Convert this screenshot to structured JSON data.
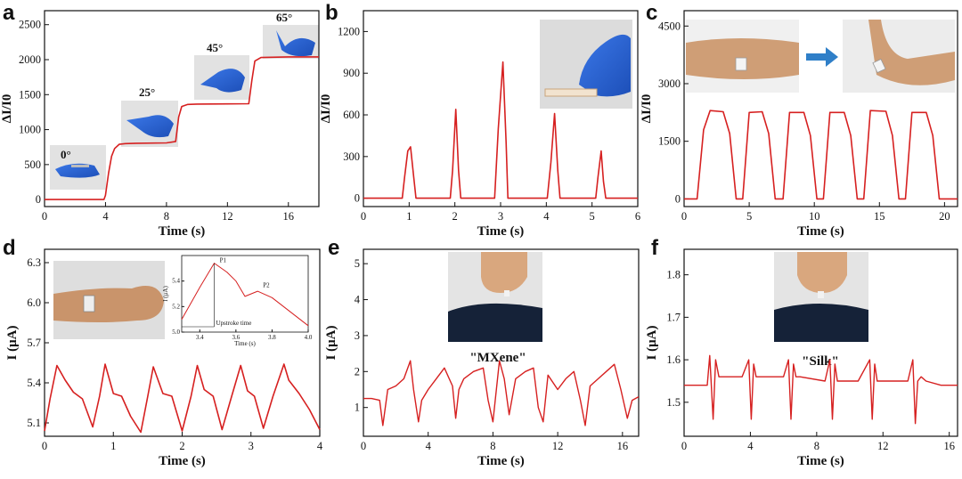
{
  "colors": {
    "line": "#d62020",
    "axis": "#111111",
    "photo_bg": "#d8d8d8",
    "skin": "#d9a77e",
    "glove": "#2a63d6",
    "shirt": "#142033",
    "arrow": "#2f7fc8"
  },
  "chart_data": [
    {
      "id": "a",
      "type": "line",
      "panel_label": "a",
      "xlabel": "Time (s)",
      "ylabel": "ΔI/I0",
      "xlim": [
        0,
        18
      ],
      "ylim": [
        -100,
        2700
      ],
      "xticks": [
        "0",
        "4",
        "8",
        "12",
        "16"
      ],
      "yticks": [
        "0",
        "500",
        "1000",
        "1500",
        "2000",
        "2500"
      ],
      "annotations": [
        "0°",
        "25°",
        "45°",
        "65°"
      ],
      "images": [
        "glove-finger-bend-0",
        "glove-finger-bend-25",
        "glove-finger-bend-45",
        "glove-finger-bend-65"
      ],
      "x": [
        0,
        3.9,
        4.0,
        4.2,
        4.4,
        4.6,
        4.9,
        5.3,
        6.0,
        8.0,
        8.6,
        8.8,
        9.0,
        9.4,
        10.0,
        13.4,
        13.6,
        13.8,
        14.2,
        16.0,
        18.0
      ],
      "y": [
        0,
        0,
        60,
        380,
        620,
        730,
        790,
        800,
        805,
        810,
        830,
        1180,
        1330,
        1360,
        1365,
        1370,
        1700,
        1980,
        2030,
        2040,
        2040
      ]
    },
    {
      "id": "b",
      "type": "line",
      "panel_label": "b",
      "xlabel": "Time (s)",
      "ylabel": "ΔI/I0",
      "xlim": [
        0,
        6
      ],
      "ylim": [
        -60,
        1350
      ],
      "xticks": [
        "0",
        "1",
        "2",
        "3",
        "4",
        "5",
        "6"
      ],
      "yticks": [
        "0",
        "300",
        "600",
        "900",
        "1200"
      ],
      "images": [
        "glove-finger-press"
      ],
      "x": [
        0,
        0.85,
        0.9,
        0.97,
        1.03,
        1.1,
        1.15,
        1.9,
        1.95,
        2.02,
        2.08,
        2.13,
        2.87,
        2.95,
        3.05,
        3.12,
        3.16,
        4.02,
        4.1,
        4.18,
        4.25,
        4.3,
        5.08,
        5.13,
        5.2,
        5.25,
        5.3,
        6.0
      ],
      "y": [
        0,
        0,
        150,
        340,
        370,
        150,
        0,
        0,
        200,
        640,
        200,
        0,
        0,
        500,
        980,
        400,
        0,
        0,
        260,
        610,
        200,
        0,
        0,
        150,
        340,
        120,
        0,
        0
      ]
    },
    {
      "id": "c",
      "type": "line",
      "panel_label": "c",
      "xlabel": "Time (s)",
      "ylabel": "ΔI/I0",
      "xlim": [
        0,
        21
      ],
      "ylim": [
        -200,
        4900
      ],
      "xticks": [
        "0",
        "5",
        "10",
        "15",
        "20"
      ],
      "yticks": [
        "0",
        "1500",
        "3000",
        "4500"
      ],
      "images": [
        "arm-straight-with-sensor",
        "arm-bent-with-sensor"
      ],
      "x": [
        0,
        1.0,
        1.5,
        2.0,
        3.0,
        3.5,
        4.0,
        4.5,
        5.0,
        6.0,
        6.5,
        7.0,
        7.6,
        8.1,
        9.2,
        9.7,
        10.2,
        10.7,
        11.2,
        12.3,
        12.8,
        13.3,
        13.8,
        14.3,
        15.5,
        16.0,
        16.5,
        17.0,
        17.5,
        18.6,
        19.1,
        19.6,
        21.0
      ],
      "y": [
        0,
        0,
        1800,
        2300,
        2270,
        1700,
        0,
        0,
        2250,
        2270,
        1700,
        0,
        0,
        2250,
        2250,
        1650,
        0,
        0,
        2250,
        2250,
        1650,
        0,
        0,
        2300,
        2280,
        1650,
        0,
        0,
        2250,
        2250,
        1650,
        0,
        0
      ]
    },
    {
      "id": "d",
      "type": "line",
      "panel_label": "d",
      "xlabel": "Time (s)",
      "ylabel": "I (μA)",
      "xlim": [
        0,
        4
      ],
      "ylim": [
        5.0,
        6.4
      ],
      "xticks": [
        "0",
        "1",
        "2",
        "3",
        "4"
      ],
      "yticks": [
        "5.1",
        "5.4",
        "5.7",
        "6.0",
        "6.3"
      ],
      "images": [
        "wrist-with-sensor-fist"
      ],
      "x": [
        0,
        0.08,
        0.18,
        0.3,
        0.42,
        0.55,
        0.7,
        0.8,
        0.88,
        1.0,
        1.12,
        1.25,
        1.4,
        1.5,
        1.58,
        1.72,
        1.85,
        2.0,
        2.13,
        2.22,
        2.32,
        2.45,
        2.58,
        2.72,
        2.85,
        2.95,
        3.05,
        3.18,
        3.32,
        3.48,
        3.55,
        3.7,
        3.85,
        4.0
      ],
      "y": [
        5.04,
        5.28,
        5.53,
        5.42,
        5.33,
        5.28,
        5.07,
        5.3,
        5.54,
        5.32,
        5.3,
        5.15,
        5.03,
        5.3,
        5.52,
        5.32,
        5.3,
        5.04,
        5.3,
        5.53,
        5.35,
        5.3,
        5.05,
        5.3,
        5.53,
        5.34,
        5.3,
        5.06,
        5.3,
        5.54,
        5.42,
        5.32,
        5.2,
        5.05
      ]
    },
    {
      "id": "d_inset",
      "type": "line",
      "panel_label": "",
      "xlabel": "Time (s)",
      "ylabel": "I (μA)",
      "xlim": [
        3.3,
        4.0
      ],
      "ylim": [
        5.0,
        5.6
      ],
      "xticks": [
        "3.4",
        "3.6",
        "3.8",
        "4.0"
      ],
      "yticks": [
        "5.0",
        "5.2",
        "5.4"
      ],
      "annotations": [
        "P1",
        "P2",
        "Upstroke time"
      ],
      "x": [
        3.3,
        3.4,
        3.48,
        3.55,
        3.6,
        3.65,
        3.72,
        3.8,
        4.0
      ],
      "y": [
        5.1,
        5.35,
        5.54,
        5.47,
        5.4,
        5.28,
        5.32,
        5.27,
        5.05
      ]
    },
    {
      "id": "e",
      "type": "line",
      "panel_label": "e",
      "xlabel": "Time (s)",
      "ylabel": "I (μA)",
      "xlim": [
        0,
        17
      ],
      "ylim": [
        0.2,
        5.4
      ],
      "xticks": [
        "0",
        "4",
        "8",
        "12",
        "16"
      ],
      "yticks": [
        "1",
        "2",
        "3",
        "4",
        "5"
      ],
      "annotations": [
        "\"MXene\""
      ],
      "images": [
        "person-speaking-neck-sensor"
      ],
      "x": [
        0,
        0.5,
        1.0,
        1.2,
        1.5,
        2.0,
        2.5,
        2.9,
        3.1,
        3.4,
        3.6,
        4.0,
        4.5,
        5.0,
        5.5,
        5.7,
        5.9,
        6.2,
        6.8,
        7.4,
        7.7,
        8.0,
        8.4,
        8.7,
        9.0,
        9.4,
        10.0,
        10.5,
        10.8,
        11.1,
        11.4,
        12.0,
        12.5,
        13.0,
        13.4,
        13.7,
        14.0,
        14.5,
        15.0,
        15.5,
        15.9,
        16.3,
        16.6,
        17.0
      ],
      "y": [
        1.25,
        1.25,
        1.2,
        0.5,
        1.5,
        1.6,
        1.8,
        2.3,
        1.5,
        0.6,
        1.2,
        1.5,
        1.8,
        2.1,
        1.6,
        0.7,
        1.5,
        1.8,
        2.0,
        2.1,
        1.2,
        0.6,
        2.3,
        1.8,
        0.8,
        1.8,
        2.0,
        2.1,
        1.0,
        0.6,
        1.9,
        1.5,
        1.8,
        2.0,
        1.2,
        0.5,
        1.6,
        1.8,
        2.0,
        2.2,
        1.5,
        0.7,
        1.2,
        1.3
      ]
    },
    {
      "id": "f",
      "type": "line",
      "panel_label": "f",
      "xlabel": "Time (s)",
      "ylabel": "I (μA)",
      "xlim": [
        0,
        16.5
      ],
      "ylim": [
        1.42,
        1.86
      ],
      "xticks": [
        "0",
        "4",
        "8",
        "12",
        "16"
      ],
      "yticks": [
        "1.5",
        "1.6",
        "1.7",
        "1.8"
      ],
      "annotations": [
        "\"Silk\""
      ],
      "images": [
        "person-neck-sensor"
      ],
      "x": [
        0,
        1.4,
        1.55,
        1.75,
        1.9,
        2.1,
        2.5,
        3.5,
        3.9,
        4.05,
        4.2,
        4.35,
        4.6,
        6.0,
        6.3,
        6.45,
        6.6,
        6.75,
        7.0,
        8.5,
        8.8,
        8.95,
        9.1,
        9.25,
        9.5,
        10.5,
        11.2,
        11.35,
        11.5,
        11.65,
        11.9,
        13.5,
        13.8,
        13.95,
        14.1,
        14.3,
        14.6,
        15.5,
        16.5
      ],
      "y": [
        1.54,
        1.54,
        1.61,
        1.46,
        1.6,
        1.56,
        1.56,
        1.56,
        1.6,
        1.46,
        1.59,
        1.56,
        1.56,
        1.56,
        1.6,
        1.46,
        1.59,
        1.56,
        1.56,
        1.55,
        1.6,
        1.46,
        1.59,
        1.55,
        1.55,
        1.55,
        1.6,
        1.46,
        1.59,
        1.55,
        1.55,
        1.55,
        1.6,
        1.45,
        1.55,
        1.56,
        1.55,
        1.54,
        1.54
      ]
    }
  ]
}
